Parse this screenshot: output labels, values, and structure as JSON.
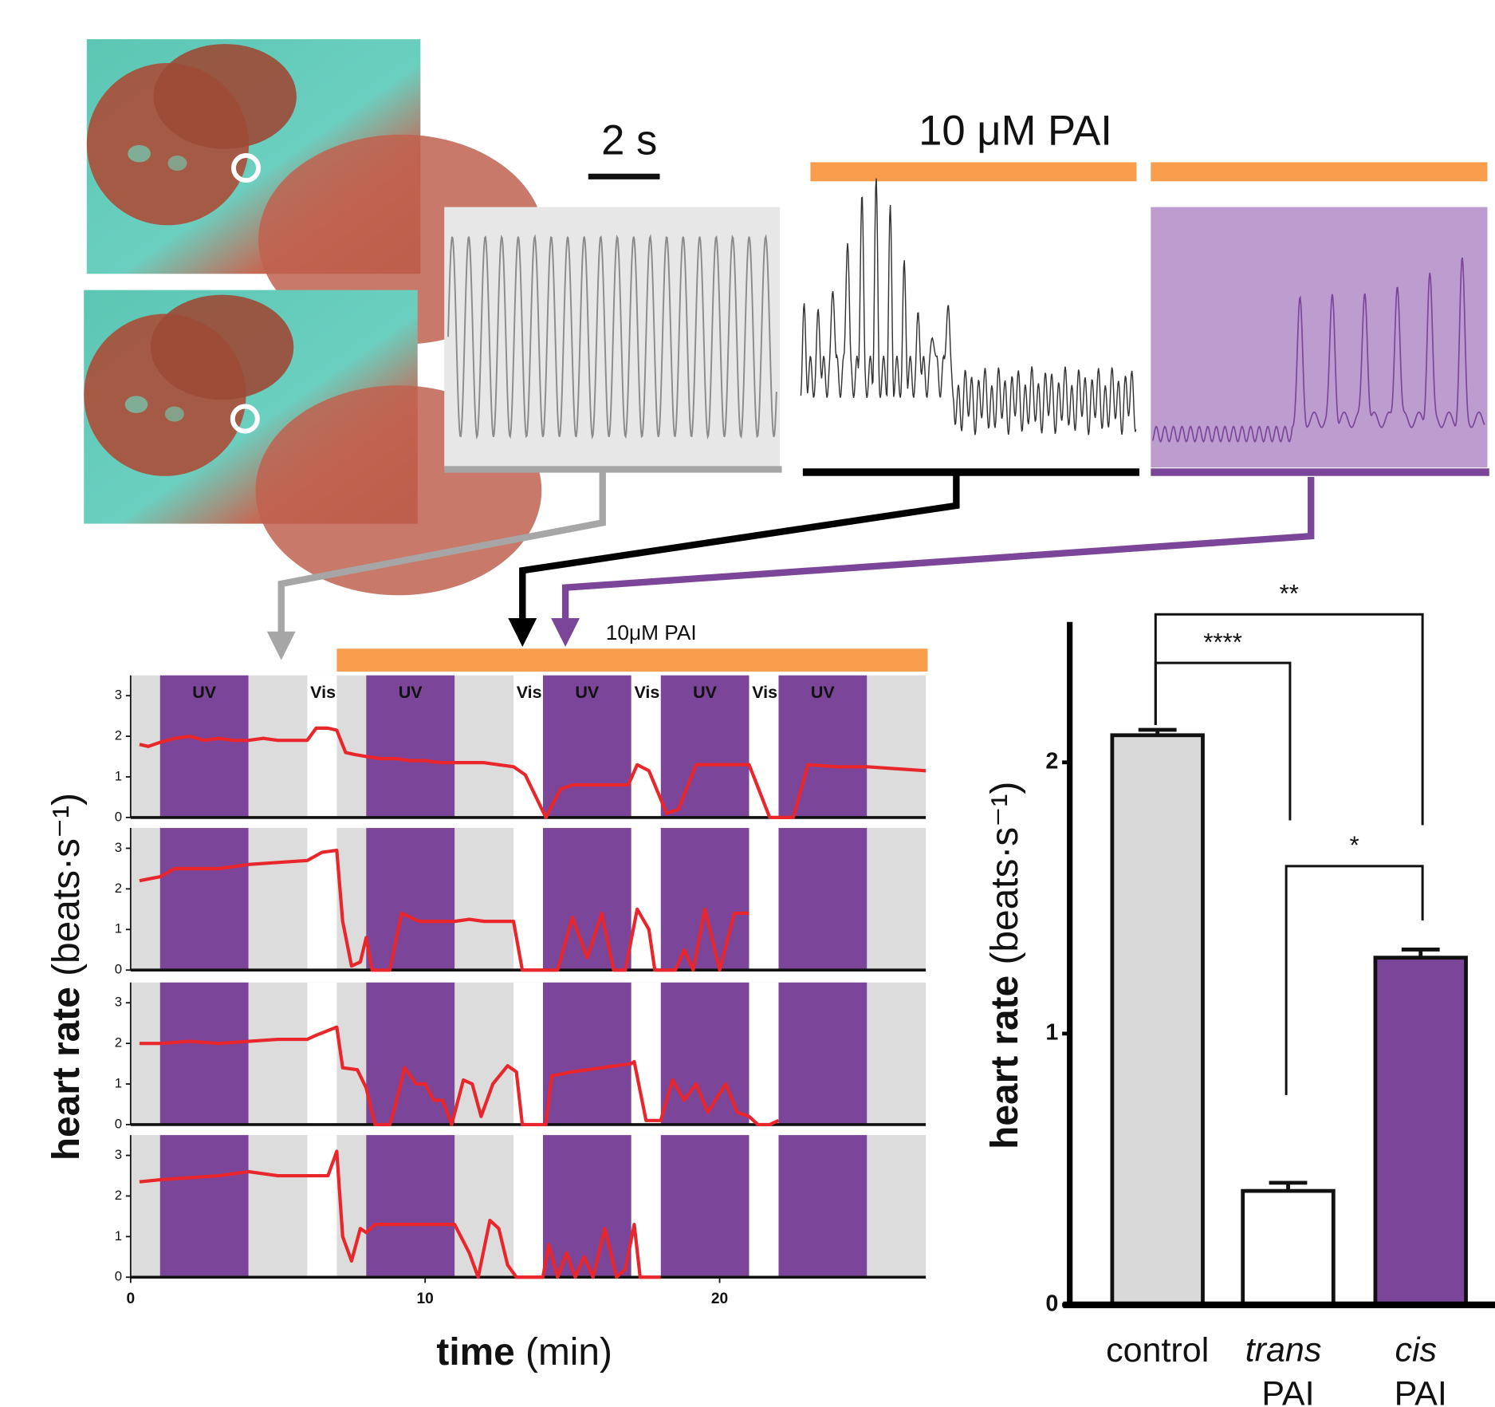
{
  "traces": {
    "scale_label": "2 s",
    "drug_label": "10 μM PAI"
  },
  "chart_data": [
    {
      "type": "line",
      "color": "#e8262b",
      "y_label": "heart rate (beats·s⁻¹)",
      "drug_label": "10μM PAI",
      "drug_range": [
        7,
        27
      ],
      "drug_color": "#f89d4c",
      "uv_label": "UV",
      "vis_label": "Vis",
      "uv_ranges": [
        [
          1,
          4
        ],
        [
          8,
          11
        ],
        [
          14,
          17
        ],
        [
          18,
          21
        ],
        [
          22,
          25
        ]
      ],
      "vis_ranges": [
        [
          6,
          7
        ],
        [
          13,
          14
        ],
        [
          17,
          18
        ],
        [
          21,
          22
        ]
      ],
      "uv_color": "#7b4699",
      "xlim": [
        0,
        27
      ],
      "ylim": [
        0,
        3.5
      ],
      "yticks": [
        0,
        1,
        2,
        3
      ],
      "x": [
        0.3,
        0.6,
        1,
        1.5,
        2,
        2.5,
        3,
        3.5,
        4,
        4.5,
        5,
        5.5,
        6,
        6.3,
        6.7,
        7,
        7.3,
        7.6,
        8,
        8.5,
        9,
        9.5,
        10,
        10.5,
        11,
        11.5,
        12,
        12.5,
        13,
        13.4,
        14.1,
        14.6,
        15,
        16,
        16.9,
        17.2,
        17.6,
        18.2,
        18.6,
        19.2,
        20,
        21,
        21.7,
        22.5,
        23,
        24,
        25,
        26,
        27
      ],
      "values": [
        1.8,
        1.75,
        1.85,
        1.95,
        2.0,
        1.9,
        1.95,
        1.9,
        1.9,
        1.95,
        1.9,
        1.9,
        1.9,
        2.2,
        2.2,
        2.15,
        1.6,
        1.55,
        1.5,
        1.45,
        1.45,
        1.4,
        1.4,
        1.35,
        1.35,
        1.35,
        1.35,
        1.3,
        1.25,
        1.05,
        0,
        0.7,
        0.8,
        0.8,
        0.8,
        1.3,
        1.15,
        0.1,
        0.2,
        1.3,
        1.3,
        1.3,
        0,
        0,
        1.3,
        1.25,
        1.25,
        1.2,
        1.15
      ]
    },
    {
      "type": "line",
      "color": "#e8262b",
      "xlim": [
        0,
        27
      ],
      "ylim": [
        0,
        3.5
      ],
      "yticks": [
        0,
        1,
        2,
        3
      ],
      "x": [
        0.3,
        1,
        1.5,
        3,
        4,
        5,
        6,
        6.5,
        7,
        7.2,
        7.5,
        7.8,
        8,
        8.2,
        8.8,
        9.2,
        9.8,
        11,
        11.5,
        12,
        13,
        13.3,
        14.5,
        15,
        15.5,
        16,
        16.4,
        16.8,
        17.2,
        17.6,
        17.8,
        18.5,
        18.8,
        19.1,
        19.5,
        20,
        20.5,
        21
      ],
      "values": [
        2.2,
        2.3,
        2.5,
        2.5,
        2.6,
        2.65,
        2.7,
        2.9,
        2.95,
        1.2,
        0.1,
        0.2,
        0.8,
        0,
        0,
        1.4,
        1.2,
        1.2,
        1.25,
        1.2,
        1.2,
        0,
        0,
        1.3,
        0.3,
        1.4,
        0,
        0,
        1.5,
        1.0,
        0,
        0,
        0.5,
        0,
        1.5,
        0,
        1.4,
        1.4
      ]
    },
    {
      "type": "line",
      "color": "#e8262b",
      "xlim": [
        0,
        27
      ],
      "ylim": [
        0,
        3.5
      ],
      "yticks": [
        0,
        1,
        2,
        3
      ],
      "x": [
        0.3,
        1,
        2,
        3,
        4,
        5,
        6,
        6.3,
        7,
        7.2,
        7.7,
        8,
        8.3,
        8.8,
        9,
        9.3,
        9.7,
        10,
        10.3,
        10.6,
        10.9,
        11.3,
        11.6,
        11.9,
        12.3,
        12.8,
        13.1,
        13.3,
        14.1,
        14.3,
        15,
        16,
        17,
        17.1,
        17.5,
        18,
        18.4,
        18.8,
        19.2,
        19.6,
        20.2,
        20.6,
        21,
        21.3,
        21.7,
        22
      ],
      "values": [
        2.0,
        2.0,
        2.05,
        2.0,
        2.05,
        2.1,
        2.1,
        2.2,
        2.4,
        1.4,
        1.35,
        0.9,
        0,
        0,
        0.5,
        1.4,
        1.0,
        1.0,
        0.6,
        0.6,
        0,
        1.1,
        1.0,
        0.2,
        1.0,
        1.45,
        1.3,
        0,
        0,
        1.2,
        1.3,
        1.4,
        1.5,
        1.55,
        0.1,
        0.1,
        1.1,
        0.6,
        1.0,
        0.3,
        1.0,
        0.3,
        0.2,
        0,
        0,
        0.1
      ]
    },
    {
      "type": "line",
      "color": "#e8262b",
      "xlim": [
        0,
        27
      ],
      "ylim": [
        0,
        3.5
      ],
      "yticks": [
        0,
        1,
        2,
        3
      ],
      "xticks": [
        0,
        10,
        20
      ],
      "x_label": "time (min)",
      "x": [
        0.3,
        1,
        2,
        3,
        4,
        5,
        6,
        6.7,
        7,
        7.2,
        7.5,
        7.8,
        8,
        8.3,
        10,
        11,
        11.5,
        11.8,
        12.2,
        12.5,
        12.8,
        13.1,
        14,
        14.2,
        14.5,
        14.8,
        15.1,
        15.4,
        15.7,
        16.1,
        16.5,
        16.8,
        17.1,
        17.3,
        18
      ],
      "values": [
        2.35,
        2.4,
        2.45,
        2.5,
        2.6,
        2.5,
        2.5,
        2.5,
        3.1,
        1.0,
        0.4,
        1.2,
        1.1,
        1.3,
        1.3,
        1.3,
        0.6,
        0,
        1.4,
        1.2,
        0.3,
        0,
        0,
        0.8,
        0,
        0.6,
        0,
        0.5,
        0,
        1.2,
        0,
        0.2,
        1.3,
        0,
        0
      ]
    },
    {
      "type": "bar",
      "y_label": "heart rate (beats·s⁻¹)",
      "categories": [
        "control",
        "trans PAI",
        "cis PAI"
      ],
      "values": [
        2.1,
        0.42,
        1.28
      ],
      "errors": [
        0.02,
        0.03,
        0.03
      ],
      "colors": [
        "#d9d9d9",
        "#ffffff",
        "#7b4699"
      ],
      "ylim": [
        0,
        2.5
      ],
      "yticks": [
        0,
        1,
        2
      ],
      "significance": [
        {
          "groups": [
            0,
            2
          ],
          "label": "**"
        },
        {
          "groups": [
            0,
            1
          ],
          "label": "****"
        },
        {
          "groups": [
            1,
            2
          ],
          "label": "*"
        }
      ]
    }
  ]
}
